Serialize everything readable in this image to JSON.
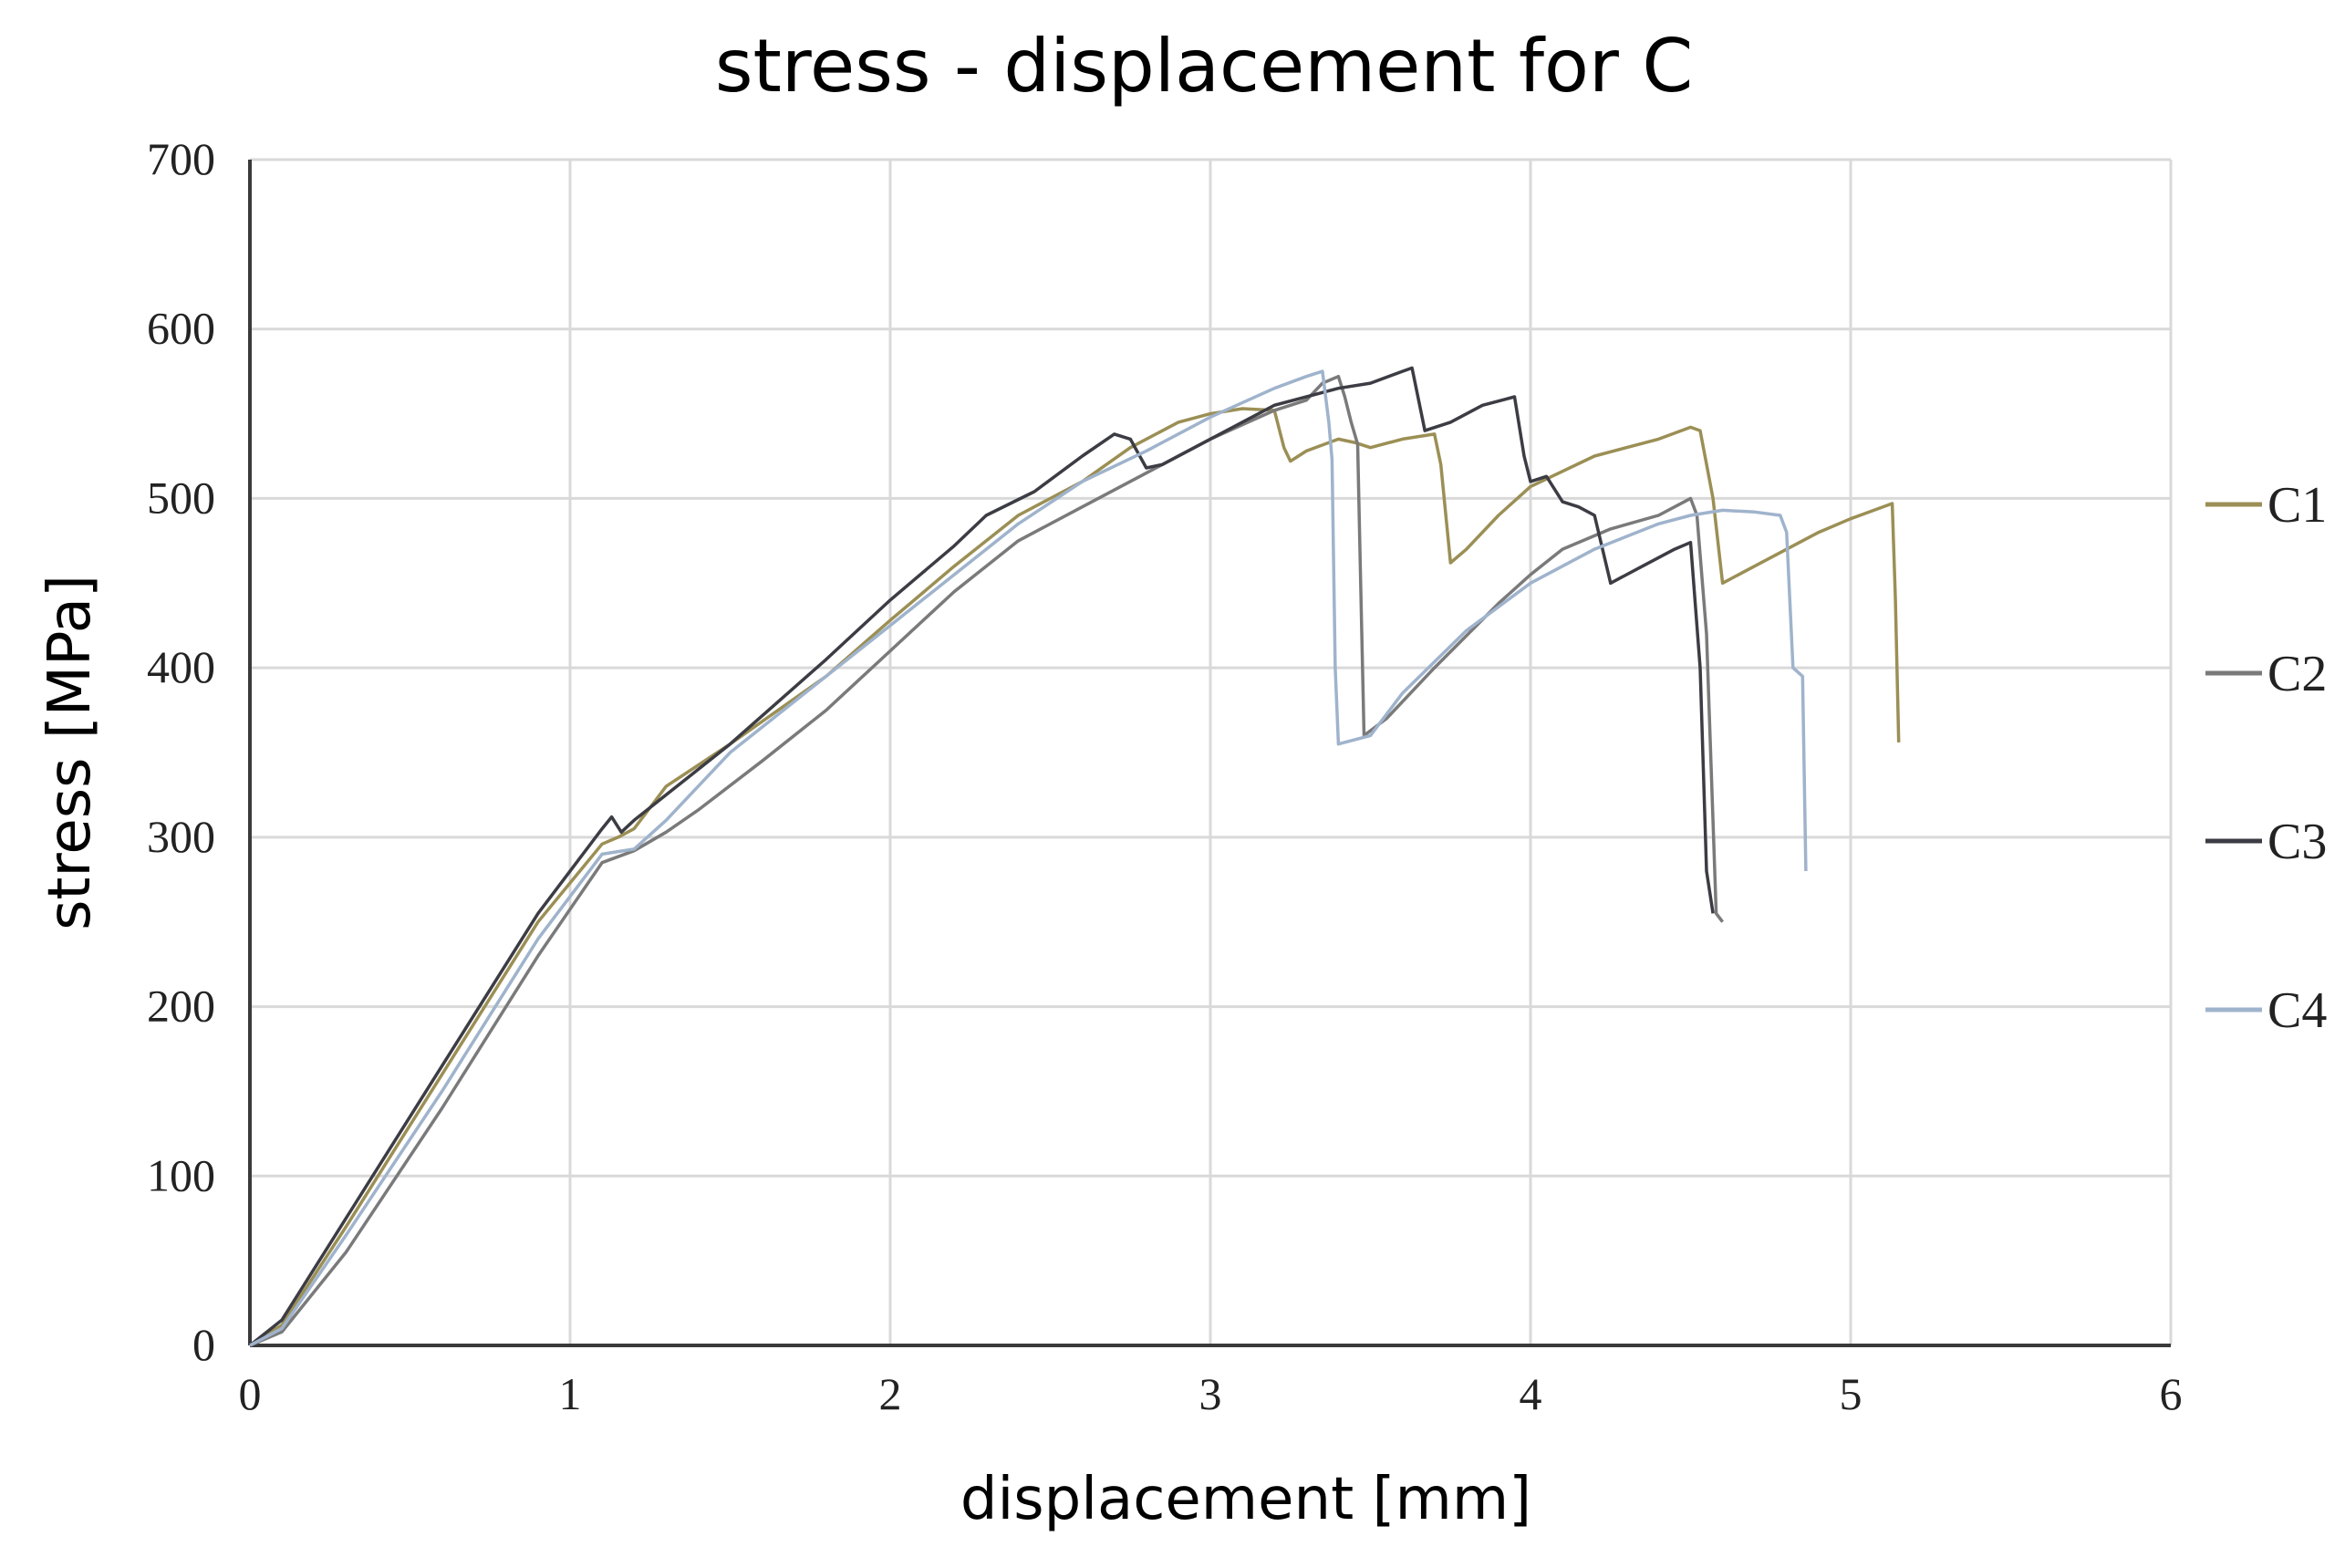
{
  "chart_data": {
    "type": "line",
    "title": "stress - displacement for C",
    "xlabel": "displacement [mm]",
    "ylabel": "stress [MPa]",
    "xlim": [
      0,
      6
    ],
    "ylim": [
      0,
      700
    ],
    "x_ticks": [
      "0",
      "1",
      "2",
      "3",
      "4",
      "5",
      "6"
    ],
    "y_ticks": [
      "0",
      "100",
      "200",
      "300",
      "400",
      "500",
      "600",
      "700"
    ],
    "grid": true,
    "legend_position": "right",
    "series": [
      {
        "name": "C1",
        "color": "#9b8f55",
        "points": [
          [
            0,
            0
          ],
          [
            0.1,
            12
          ],
          [
            0.3,
            70
          ],
          [
            0.6,
            160
          ],
          [
            0.9,
            250
          ],
          [
            1.1,
            296
          ],
          [
            1.15,
            300
          ],
          [
            1.2,
            305
          ],
          [
            1.3,
            330
          ],
          [
            1.5,
            355
          ],
          [
            1.8,
            395
          ],
          [
            2.0,
            428
          ],
          [
            2.2,
            460
          ],
          [
            2.4,
            490
          ],
          [
            2.6,
            510
          ],
          [
            2.75,
            530
          ],
          [
            2.9,
            545
          ],
          [
            3.0,
            550
          ],
          [
            3.1,
            553
          ],
          [
            3.2,
            552
          ],
          [
            3.23,
            530
          ],
          [
            3.25,
            522
          ],
          [
            3.3,
            528
          ],
          [
            3.4,
            535
          ],
          [
            3.45,
            533
          ],
          [
            3.5,
            530
          ],
          [
            3.6,
            535
          ],
          [
            3.7,
            538
          ],
          [
            3.72,
            520
          ],
          [
            3.75,
            462
          ],
          [
            3.8,
            470
          ],
          [
            3.9,
            490
          ],
          [
            4.0,
            507
          ],
          [
            4.2,
            525
          ],
          [
            4.4,
            535
          ],
          [
            4.5,
            542
          ],
          [
            4.53,
            540
          ],
          [
            4.57,
            500
          ],
          [
            4.6,
            450
          ],
          [
            4.7,
            460
          ],
          [
            4.9,
            480
          ],
          [
            5.0,
            488
          ],
          [
            5.13,
            497
          ],
          [
            5.14,
            440
          ],
          [
            5.15,
            356
          ]
        ]
      },
      {
        "name": "C2",
        "color": "#7a7a7a",
        "points": [
          [
            0,
            0
          ],
          [
            0.1,
            8
          ],
          [
            0.3,
            55
          ],
          [
            0.6,
            140
          ],
          [
            0.9,
            230
          ],
          [
            1.1,
            285
          ],
          [
            1.2,
            292
          ],
          [
            1.3,
            303
          ],
          [
            1.4,
            316
          ],
          [
            1.6,
            345
          ],
          [
            1.8,
            375
          ],
          [
            2.0,
            410
          ],
          [
            2.2,
            445
          ],
          [
            2.4,
            475
          ],
          [
            2.6,
            495
          ],
          [
            2.8,
            515
          ],
          [
            3.0,
            535
          ],
          [
            3.2,
            552
          ],
          [
            3.3,
            558
          ],
          [
            3.35,
            568
          ],
          [
            3.4,
            572
          ],
          [
            3.42,
            560
          ],
          [
            3.44,
            545
          ],
          [
            3.46,
            532
          ],
          [
            3.47,
            445
          ],
          [
            3.48,
            360
          ],
          [
            3.55,
            370
          ],
          [
            3.7,
            400
          ],
          [
            3.9,
            438
          ],
          [
            4.0,
            455
          ],
          [
            4.1,
            470
          ],
          [
            4.25,
            482
          ],
          [
            4.4,
            490
          ],
          [
            4.5,
            500
          ],
          [
            4.52,
            490
          ],
          [
            4.55,
            420
          ],
          [
            4.58,
            255
          ],
          [
            4.6,
            250
          ]
        ]
      },
      {
        "name": "C3",
        "color": "#3c3c44",
        "points": [
          [
            0,
            0
          ],
          [
            0.1,
            15
          ],
          [
            0.3,
            75
          ],
          [
            0.6,
            165
          ],
          [
            0.9,
            255
          ],
          [
            1.1,
            305
          ],
          [
            1.13,
            312
          ],
          [
            1.16,
            303
          ],
          [
            1.2,
            310
          ],
          [
            1.3,
            325
          ],
          [
            1.5,
            355
          ],
          [
            1.8,
            405
          ],
          [
            2.0,
            440
          ],
          [
            2.2,
            472
          ],
          [
            2.3,
            490
          ],
          [
            2.45,
            504
          ],
          [
            2.6,
            525
          ],
          [
            2.7,
            538
          ],
          [
            2.75,
            535
          ],
          [
            2.8,
            518
          ],
          [
            2.85,
            520
          ],
          [
            3.0,
            535
          ],
          [
            3.2,
            555
          ],
          [
            3.4,
            565
          ],
          [
            3.5,
            568
          ],
          [
            3.6,
            575
          ],
          [
            3.63,
            577
          ],
          [
            3.67,
            540
          ],
          [
            3.75,
            545
          ],
          [
            3.85,
            555
          ],
          [
            3.95,
            560
          ],
          [
            3.98,
            525
          ],
          [
            4.0,
            510
          ],
          [
            4.05,
            513
          ],
          [
            4.1,
            498
          ],
          [
            4.15,
            495
          ],
          [
            4.2,
            490
          ],
          [
            4.25,
            450
          ],
          [
            4.35,
            460
          ],
          [
            4.45,
            470
          ],
          [
            4.5,
            474
          ],
          [
            4.53,
            400
          ],
          [
            4.55,
            280
          ],
          [
            4.57,
            255
          ]
        ]
      },
      {
        "name": "C4",
        "color": "#9fb3cc",
        "points": [
          [
            0,
            0
          ],
          [
            0.1,
            10
          ],
          [
            0.3,
            65
          ],
          [
            0.6,
            150
          ],
          [
            0.9,
            240
          ],
          [
            1.1,
            290
          ],
          [
            1.2,
            293
          ],
          [
            1.3,
            310
          ],
          [
            1.5,
            350
          ],
          [
            1.8,
            395
          ],
          [
            2.0,
            425
          ],
          [
            2.2,
            455
          ],
          [
            2.4,
            485
          ],
          [
            2.6,
            510
          ],
          [
            2.8,
            528
          ],
          [
            3.0,
            548
          ],
          [
            3.2,
            565
          ],
          [
            3.3,
            572
          ],
          [
            3.35,
            575
          ],
          [
            3.37,
            545
          ],
          [
            3.38,
            523
          ],
          [
            3.39,
            400
          ],
          [
            3.4,
            355
          ],
          [
            3.5,
            360
          ],
          [
            3.6,
            385
          ],
          [
            3.8,
            422
          ],
          [
            4.0,
            450
          ],
          [
            4.2,
            470
          ],
          [
            4.4,
            485
          ],
          [
            4.5,
            490
          ],
          [
            4.6,
            493
          ],
          [
            4.7,
            492
          ],
          [
            4.78,
            490
          ],
          [
            4.8,
            480
          ],
          [
            4.82,
            400
          ],
          [
            4.85,
            395
          ],
          [
            4.86,
            280
          ]
        ]
      }
    ]
  }
}
